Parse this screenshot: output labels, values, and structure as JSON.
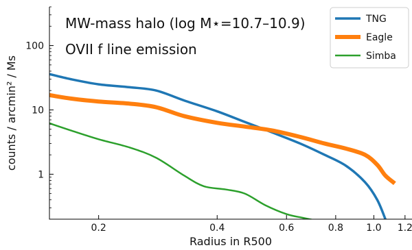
{
  "chart_data": {
    "type": "line",
    "annotations": [
      "MW-mass halo (log M⋆=10.7–10.9)",
      "OVII f line emission"
    ],
    "xlabel": "Radius in R500",
    "ylabel": "counts / arcmin² / Ms",
    "xscale": "log",
    "yscale": "log",
    "xlim": [
      0.15,
      1.25
    ],
    "ylim": [
      0.2,
      400
    ],
    "x_ticks": [
      {
        "value": 0.2,
        "label": "0.2"
      },
      {
        "value": 0.4,
        "label": "0.4"
      },
      {
        "value": 0.6,
        "label": "0.6"
      },
      {
        "value": 0.8,
        "label": "0.8"
      },
      {
        "value": 1.0,
        "label": "1.0"
      },
      {
        "value": 1.2,
        "label": "1.2"
      }
    ],
    "y_ticks": [
      {
        "value": 1,
        "label": "1"
      },
      {
        "value": 10,
        "label": "10"
      },
      {
        "value": 100,
        "label": "100"
      }
    ],
    "legend_position": "top-right",
    "grid": false,
    "series": [
      {
        "name": "TNG",
        "color": "#1f77b4",
        "width": 3.5,
        "points": [
          [
            0.15,
            36
          ],
          [
            0.17,
            30
          ],
          [
            0.2,
            25
          ],
          [
            0.24,
            22.5
          ],
          [
            0.28,
            20
          ],
          [
            0.33,
            14
          ],
          [
            0.4,
            9.5
          ],
          [
            0.47,
            6.5
          ],
          [
            0.55,
            4.5
          ],
          [
            0.65,
            3.0
          ],
          [
            0.75,
            2.0
          ],
          [
            0.85,
            1.35
          ],
          [
            0.95,
            0.75
          ],
          [
            1.02,
            0.4
          ],
          [
            1.07,
            0.2
          ]
        ]
      },
      {
        "name": "Eagle",
        "color": "#ff7f0e",
        "width": 6,
        "points": [
          [
            0.15,
            17
          ],
          [
            0.17,
            15
          ],
          [
            0.2,
            13.5
          ],
          [
            0.24,
            12.5
          ],
          [
            0.28,
            11
          ],
          [
            0.33,
            8
          ],
          [
            0.4,
            6.3
          ],
          [
            0.47,
            5.5
          ],
          [
            0.55,
            4.8
          ],
          [
            0.65,
            3.8
          ],
          [
            0.75,
            3.0
          ],
          [
            0.85,
            2.5
          ],
          [
            0.95,
            2.0
          ],
          [
            1.02,
            1.4
          ],
          [
            1.07,
            0.95
          ],
          [
            1.13,
            0.72
          ]
        ]
      },
      {
        "name": "Simba",
        "color": "#2ca02c",
        "width": 2.5,
        "points": [
          [
            0.15,
            6.2
          ],
          [
            0.17,
            4.8
          ],
          [
            0.2,
            3.5
          ],
          [
            0.24,
            2.6
          ],
          [
            0.28,
            1.8
          ],
          [
            0.33,
            0.95
          ],
          [
            0.37,
            0.65
          ],
          [
            0.42,
            0.58
          ],
          [
            0.47,
            0.5
          ],
          [
            0.53,
            0.33
          ],
          [
            0.6,
            0.24
          ],
          [
            0.66,
            0.21
          ],
          [
            0.75,
            0.18
          ]
        ]
      }
    ]
  }
}
